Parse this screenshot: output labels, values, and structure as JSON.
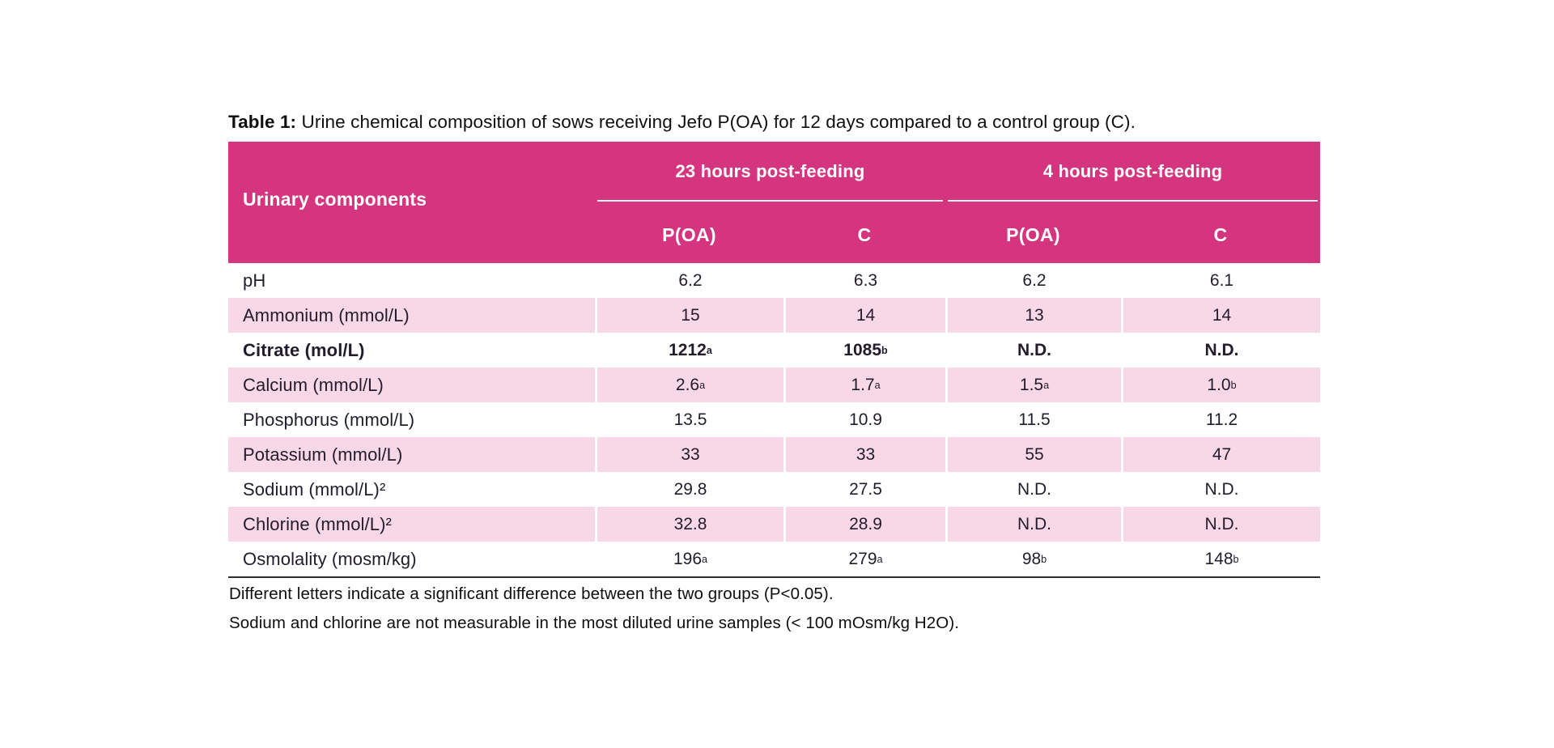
{
  "title": {
    "prefix": "Table 1:",
    "text": " Urine chemical composition of sows receiving Jefo P(OA) for 12 days compared to a control group (C)."
  },
  "table": {
    "row_header": "Urinary components",
    "groups": [
      {
        "label": "23 hours post-feeding"
      },
      {
        "label": "4 hours post-feeding"
      }
    ],
    "subheaders": [
      "P(OA)",
      "C",
      "P(OA)",
      "C"
    ],
    "rows": [
      {
        "label": "pH",
        "bold": false,
        "values": [
          "6.2",
          "6.3",
          "6.2",
          "6.1"
        ]
      },
      {
        "label": "Ammonium (mmol/L)",
        "bold": false,
        "values": [
          "15",
          "14",
          "13",
          "14"
        ]
      },
      {
        "label": "Citrate (mol/L)",
        "bold": true,
        "values": [
          "1212^a",
          "1085^b",
          "N.D.",
          "N.D."
        ]
      },
      {
        "label": "Calcium (mmol/L)",
        "bold": false,
        "values": [
          "2.6^a",
          "1.7^a",
          "1.5^a",
          "1.0^b"
        ]
      },
      {
        "label": "Phosphorus (mmol/L)",
        "bold": false,
        "values": [
          "13.5",
          "10.9",
          "11.5",
          "11.2"
        ]
      },
      {
        "label": "Potassium (mmol/L)",
        "bold": false,
        "values": [
          "33",
          "33",
          "55",
          "47"
        ]
      },
      {
        "label": "Sodium (mmol/L)²",
        "bold": false,
        "values": [
          "29.8",
          "27.5",
          "N.D.",
          "N.D."
        ]
      },
      {
        "label": "Chlorine (mmol/L)²",
        "bold": false,
        "values": [
          "32.8",
          "28.9",
          "N.D.",
          "N.D."
        ]
      },
      {
        "label": "Osmolality (mosm/kg)",
        "bold": false,
        "values": [
          "196^a",
          "279^a",
          "98^b",
          "148^b"
        ]
      }
    ],
    "colors": {
      "header_bg": "#d5357f",
      "row_alt_bg": "#f8d8e6"
    }
  },
  "footnotes": [
    "Different letters indicate a significant difference between the two groups (P<0.05).",
    "Sodium and chlorine are not measurable in the most diluted urine samples (< 100 mOsm/kg H2O)."
  ]
}
